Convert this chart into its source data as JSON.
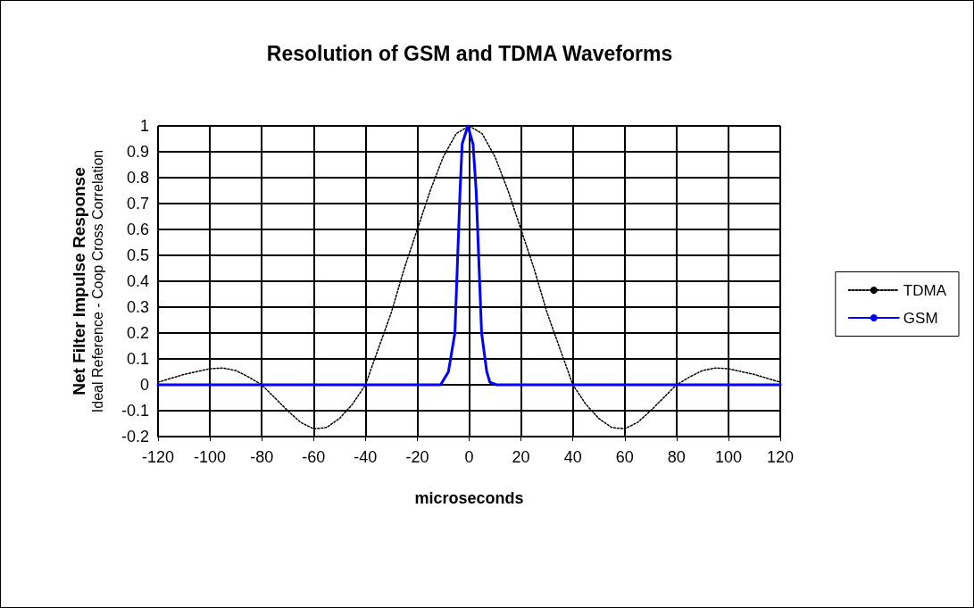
{
  "chart_data": {
    "type": "line",
    "title": "Resolution of GSM and TDMA Waveforms",
    "xlabel": "microseconds",
    "ylabel": "Net Filter Impulse Response\nIdeal Reference - Coop Cross Correlation",
    "xlim": [
      -120,
      120
    ],
    "xticks": [
      -120,
      -100,
      -80,
      -60,
      -40,
      -20,
      0,
      20,
      40,
      60,
      80,
      100,
      120
    ],
    "ylim": [
      -0.2,
      1
    ],
    "yticks": [
      -0.2,
      -0.1,
      0,
      0.1,
      0.2,
      0.3,
      0.4,
      0.5,
      0.6,
      0.7,
      0.8,
      0.9,
      1
    ],
    "grid": true,
    "legend": "right",
    "marker": "none",
    "series": [
      {
        "name": "TDMA",
        "color": "#000000",
        "line_style": "dotted",
        "x": [
          -120,
          -110,
          -100,
          -95,
          -90,
          -85,
          -80,
          -75,
          -70,
          -65,
          -60,
          -55,
          -50,
          -45,
          -40,
          -35,
          -30,
          -25,
          -20,
          -15,
          -10,
          -5,
          0,
          5,
          10,
          15,
          20,
          25,
          30,
          35,
          40,
          45,
          50,
          55,
          60,
          65,
          70,
          75,
          80,
          85,
          90,
          95,
          100,
          110,
          120
        ],
        "values": [
          0.01,
          0.04,
          0.062,
          0.065,
          0.055,
          0.03,
          0,
          -0.05,
          -0.1,
          -0.145,
          -0.17,
          -0.165,
          -0.13,
          -0.075,
          0,
          0.14,
          0.28,
          0.45,
          0.6,
          0.75,
          0.88,
          0.97,
          1,
          0.97,
          0.88,
          0.75,
          0.6,
          0.45,
          0.28,
          0.14,
          0,
          -0.075,
          -0.13,
          -0.165,
          -0.17,
          -0.145,
          -0.1,
          -0.05,
          0,
          0.03,
          0.055,
          0.065,
          0.062,
          0.04,
          0.01
        ]
      },
      {
        "name": "GSM",
        "color": "#0000ff",
        "line_style": "solid",
        "x": [
          -120,
          -11,
          -8,
          -5.5,
          -3.5,
          -2.7,
          -0.5,
          1.5,
          2.7,
          4.8,
          6.8,
          8,
          10.5,
          120
        ],
        "values": [
          0,
          0,
          0.05,
          0.2,
          0.75,
          0.93,
          1,
          0.93,
          0.75,
          0.2,
          0.05,
          0.01,
          0,
          0
        ]
      }
    ]
  }
}
